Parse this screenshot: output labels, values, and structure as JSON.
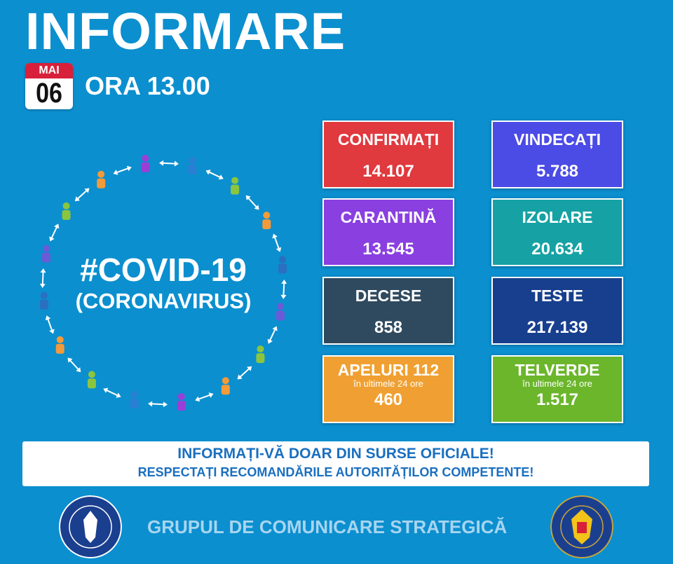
{
  "header": {
    "title": "INFORMARE",
    "month": "MAI",
    "day": "06",
    "time": "ORA 13.00"
  },
  "hero": {
    "hashtag": "#COVID-19",
    "subtitle": "(CORONAVIRUS)"
  },
  "stats": [
    {
      "label": "CONFIRMAȚI",
      "value": "14.107",
      "color": "#e0393e"
    },
    {
      "label": "VINDECAȚI",
      "value": "5.788",
      "color": "#4b4be6"
    },
    {
      "label": "CARANTINĂ",
      "value": "13.545",
      "color": "#8a3fe0"
    },
    {
      "label": "IZOLARE",
      "value": "20.634",
      "color": "#16a2a4"
    },
    {
      "label": "DECESE",
      "value": "858",
      "color": "#2f4a5f"
    },
    {
      "label": "TESTE",
      "value": "217.139",
      "color": "#183f8e"
    },
    {
      "label": "APELURI 112",
      "sub": "în ultimele 24 ore",
      "value": "460",
      "color": "#f0a032"
    },
    {
      "label": "TELVERDE",
      "sub": "în ultimele 24 ore",
      "value": "1.517",
      "color": "#6bb62b"
    }
  ],
  "banner": {
    "line1": "INFORMAȚI-VĂ DOAR DIN SURSE OFICIALE!",
    "line2": "RESPECTAȚI RECOMANDĂRILE AUTORITĂȚILOR COMPETENTE!"
  },
  "footer": {
    "text": "GRUPUL DE COMUNICARE STRATEGICĂ",
    "logo_left": "GUVERNUL ROMÂNIEI",
    "logo_right": "DEPARTAMENTUL PENTRU SITUAȚII DE URGENȚĂ M.A.I."
  }
}
